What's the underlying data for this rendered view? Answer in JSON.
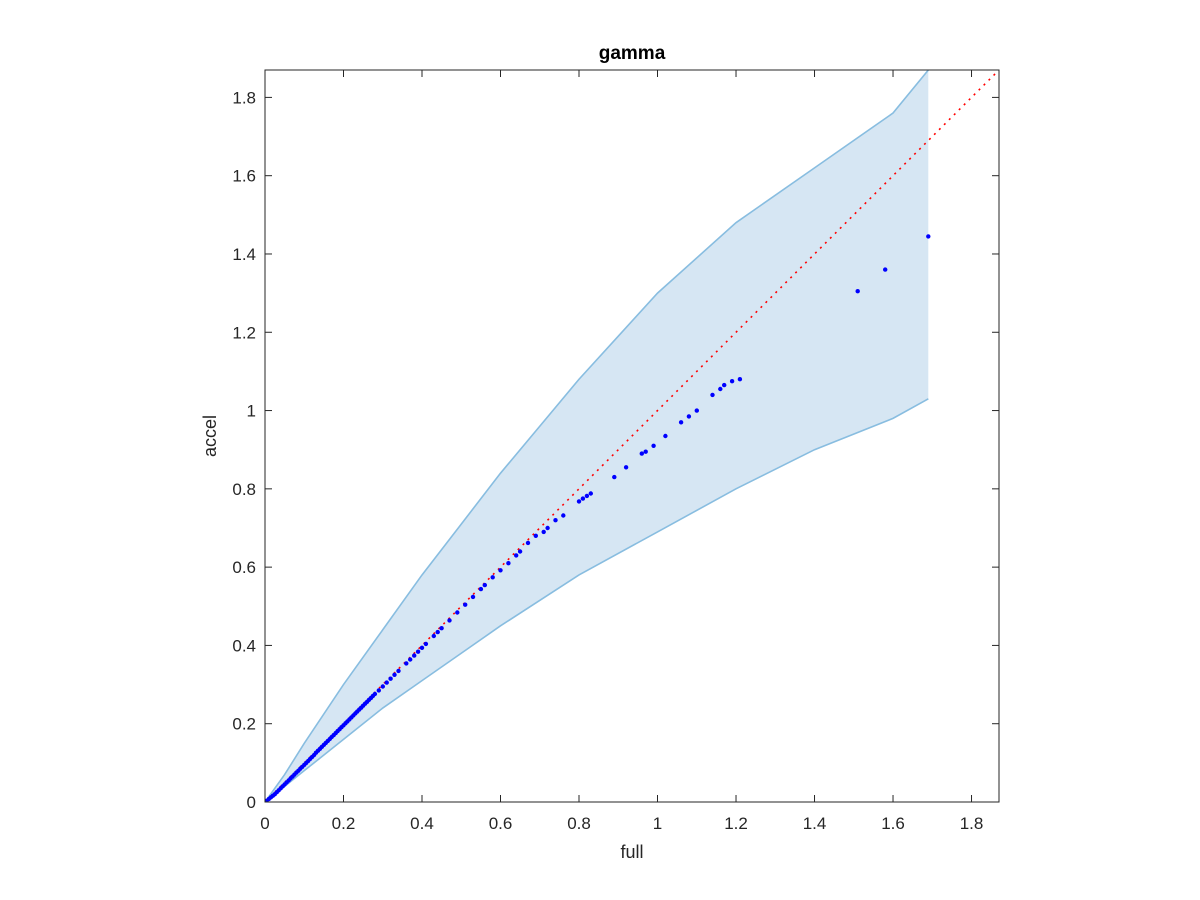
{
  "chart_data": {
    "type": "scatter",
    "title": "gamma",
    "xlabel": "full",
    "ylabel": "accel",
    "xlim": [
      0,
      1.87
    ],
    "ylim": [
      0,
      1.87
    ],
    "x_ticks": [
      0,
      0.2,
      0.4,
      0.6,
      0.8,
      1,
      1.2,
      1.4,
      1.6,
      1.8
    ],
    "y_ticks": [
      0,
      0.2,
      0.4,
      0.6,
      0.8,
      1,
      1.2,
      1.4,
      1.6,
      1.8
    ],
    "x_tick_labels": [
      "0",
      "0.2",
      "0.4",
      "0.6",
      "0.8",
      "1",
      "1.2",
      "1.4",
      "1.6",
      "1.8"
    ],
    "y_tick_labels": [
      "0",
      "0.2",
      "0.4",
      "0.6",
      "0.8",
      "1",
      "1.2",
      "1.4",
      "1.6",
      "1.8"
    ],
    "grid": false,
    "reference_line": {
      "style": "dotted",
      "color": "#ff0000",
      "from": [
        0,
        0
      ],
      "to": [
        1.87,
        1.87
      ]
    },
    "band": {
      "fill": "#d6e6f3",
      "edge": "#88bde0",
      "upper": [
        [
          0,
          0
        ],
        [
          0.05,
          0.07
        ],
        [
          0.1,
          0.15
        ],
        [
          0.2,
          0.3
        ],
        [
          0.3,
          0.44
        ],
        [
          0.4,
          0.58
        ],
        [
          0.5,
          0.71
        ],
        [
          0.6,
          0.84
        ],
        [
          0.7,
          0.96
        ],
        [
          0.8,
          1.08
        ],
        [
          0.9,
          1.19
        ],
        [
          1.0,
          1.3
        ],
        [
          1.2,
          1.48
        ],
        [
          1.4,
          1.62
        ],
        [
          1.6,
          1.76
        ],
        [
          1.69,
          1.87
        ]
      ],
      "lower": [
        [
          0,
          0
        ],
        [
          0.05,
          0.04
        ],
        [
          0.1,
          0.08
        ],
        [
          0.2,
          0.16
        ],
        [
          0.3,
          0.24
        ],
        [
          0.4,
          0.31
        ],
        [
          0.5,
          0.38
        ],
        [
          0.6,
          0.45
        ],
        [
          0.8,
          0.58
        ],
        [
          1.0,
          0.69
        ],
        [
          1.2,
          0.8
        ],
        [
          1.4,
          0.9
        ],
        [
          1.6,
          0.98
        ],
        [
          1.69,
          1.03
        ]
      ]
    },
    "series": [
      {
        "color": "#0000ff",
        "points": [
          [
            0.004,
            0.003
          ],
          [
            0.01,
            0.008
          ],
          [
            0.015,
            0.012
          ],
          [
            0.02,
            0.016
          ],
          [
            0.025,
            0.02
          ],
          [
            0.03,
            0.025
          ],
          [
            0.035,
            0.03
          ],
          [
            0.04,
            0.035
          ],
          [
            0.045,
            0.04
          ],
          [
            0.05,
            0.045
          ],
          [
            0.055,
            0.05
          ],
          [
            0.06,
            0.055
          ],
          [
            0.065,
            0.06
          ],
          [
            0.07,
            0.065
          ],
          [
            0.075,
            0.07
          ],
          [
            0.08,
            0.075
          ],
          [
            0.085,
            0.08
          ],
          [
            0.09,
            0.085
          ],
          [
            0.095,
            0.09
          ],
          [
            0.1,
            0.095
          ],
          [
            0.105,
            0.1
          ],
          [
            0.11,
            0.105
          ],
          [
            0.115,
            0.11
          ],
          [
            0.12,
            0.115
          ],
          [
            0.125,
            0.12
          ],
          [
            0.13,
            0.126
          ],
          [
            0.135,
            0.131
          ],
          [
            0.14,
            0.136
          ],
          [
            0.145,
            0.141
          ],
          [
            0.15,
            0.146
          ],
          [
            0.155,
            0.151
          ],
          [
            0.16,
            0.156
          ],
          [
            0.165,
            0.161
          ],
          [
            0.17,
            0.166
          ],
          [
            0.175,
            0.171
          ],
          [
            0.18,
            0.176
          ],
          [
            0.185,
            0.181
          ],
          [
            0.19,
            0.186
          ],
          [
            0.195,
            0.191
          ],
          [
            0.2,
            0.196
          ],
          [
            0.205,
            0.201
          ],
          [
            0.21,
            0.206
          ],
          [
            0.215,
            0.211
          ],
          [
            0.22,
            0.216
          ],
          [
            0.225,
            0.221
          ],
          [
            0.23,
            0.226
          ],
          [
            0.235,
            0.231
          ],
          [
            0.24,
            0.236
          ],
          [
            0.245,
            0.241
          ],
          [
            0.25,
            0.246
          ],
          [
            0.255,
            0.251
          ],
          [
            0.26,
            0.256
          ],
          [
            0.265,
            0.261
          ],
          [
            0.27,
            0.266
          ],
          [
            0.275,
            0.271
          ],
          [
            0.28,
            0.276
          ],
          [
            0.29,
            0.285
          ],
          [
            0.3,
            0.295
          ],
          [
            0.31,
            0.305
          ],
          [
            0.32,
            0.315
          ],
          [
            0.33,
            0.325
          ],
          [
            0.34,
            0.335
          ],
          [
            0.36,
            0.354
          ],
          [
            0.37,
            0.364
          ],
          [
            0.38,
            0.374
          ],
          [
            0.39,
            0.384
          ],
          [
            0.4,
            0.394
          ],
          [
            0.41,
            0.404
          ],
          [
            0.43,
            0.424
          ],
          [
            0.44,
            0.434
          ],
          [
            0.45,
            0.444
          ],
          [
            0.47,
            0.464
          ],
          [
            0.49,
            0.484
          ],
          [
            0.51,
            0.504
          ],
          [
            0.53,
            0.524
          ],
          [
            0.55,
            0.544
          ],
          [
            0.56,
            0.554
          ],
          [
            0.58,
            0.574
          ],
          [
            0.6,
            0.592
          ],
          [
            0.62,
            0.61
          ],
          [
            0.64,
            0.63
          ],
          [
            0.65,
            0.64
          ],
          [
            0.67,
            0.662
          ],
          [
            0.69,
            0.68
          ],
          [
            0.71,
            0.69
          ],
          [
            0.72,
            0.7
          ],
          [
            0.74,
            0.72
          ],
          [
            0.76,
            0.732
          ],
          [
            0.8,
            0.768
          ],
          [
            0.81,
            0.775
          ],
          [
            0.82,
            0.782
          ],
          [
            0.83,
            0.788
          ],
          [
            0.89,
            0.83
          ],
          [
            0.92,
            0.855
          ],
          [
            0.96,
            0.89
          ],
          [
            0.97,
            0.895
          ],
          [
            0.99,
            0.91
          ],
          [
            1.02,
            0.935
          ],
          [
            1.06,
            0.97
          ],
          [
            1.08,
            0.985
          ],
          [
            1.1,
            1.0
          ],
          [
            1.14,
            1.04
          ],
          [
            1.16,
            1.055
          ],
          [
            1.17,
            1.065
          ],
          [
            1.19,
            1.075
          ],
          [
            1.21,
            1.08
          ],
          [
            1.51,
            1.305
          ],
          [
            1.58,
            1.36
          ],
          [
            1.69,
            1.445
          ]
        ]
      }
    ]
  }
}
